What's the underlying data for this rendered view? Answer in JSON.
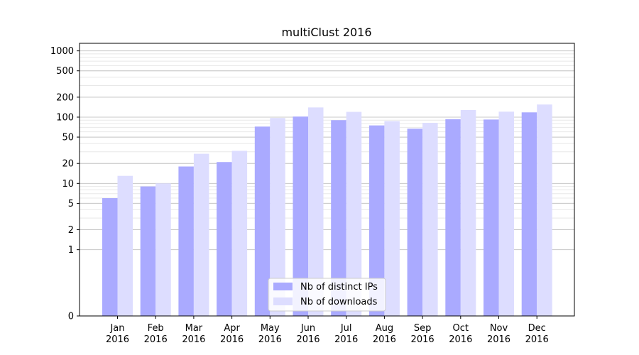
{
  "chart_data": {
    "type": "bar",
    "title": "multiClust 2016",
    "xlabel": "",
    "ylabel": "",
    "categories": [
      [
        "Jan",
        "2016"
      ],
      [
        "Feb",
        "2016"
      ],
      [
        "Mar",
        "2016"
      ],
      [
        "Apr",
        "2016"
      ],
      [
        "May",
        "2016"
      ],
      [
        "Jun",
        "2016"
      ],
      [
        "Jul",
        "2016"
      ],
      [
        "Aug",
        "2016"
      ],
      [
        "Sep",
        "2016"
      ],
      [
        "Oct",
        "2016"
      ],
      [
        "Nov",
        "2016"
      ],
      [
        "Dec",
        "2016"
      ]
    ],
    "series": [
      {
        "name": "Nb of distinct IPs",
        "color": "#aaaaff",
        "values": [
          6,
          9,
          18,
          21,
          72,
          102,
          90,
          75,
          67,
          93,
          92,
          118
        ]
      },
      {
        "name": "Nb of downloads",
        "color": "#ddddff",
        "values": [
          13,
          10,
          28,
          31,
          97,
          140,
          120,
          87,
          82,
          128,
          121,
          155
        ]
      }
    ],
    "yscale": "symlog",
    "ylim": [
      0,
      1300
    ],
    "yticks": [
      {
        "value": 0,
        "label": "0"
      },
      {
        "value": 1,
        "label": "1"
      },
      {
        "value": 2,
        "label": "2"
      },
      {
        "value": 5,
        "label": "5"
      },
      {
        "value": 10,
        "label": "10"
      },
      {
        "value": 20,
        "label": "20"
      },
      {
        "value": 50,
        "label": "50"
      },
      {
        "value": 100,
        "label": "100"
      },
      {
        "value": 200,
        "label": "200"
      },
      {
        "value": 500,
        "label": "500"
      },
      {
        "value": 1000,
        "label": "1000"
      }
    ],
    "grid": true,
    "legend_position": "lower-center"
  }
}
